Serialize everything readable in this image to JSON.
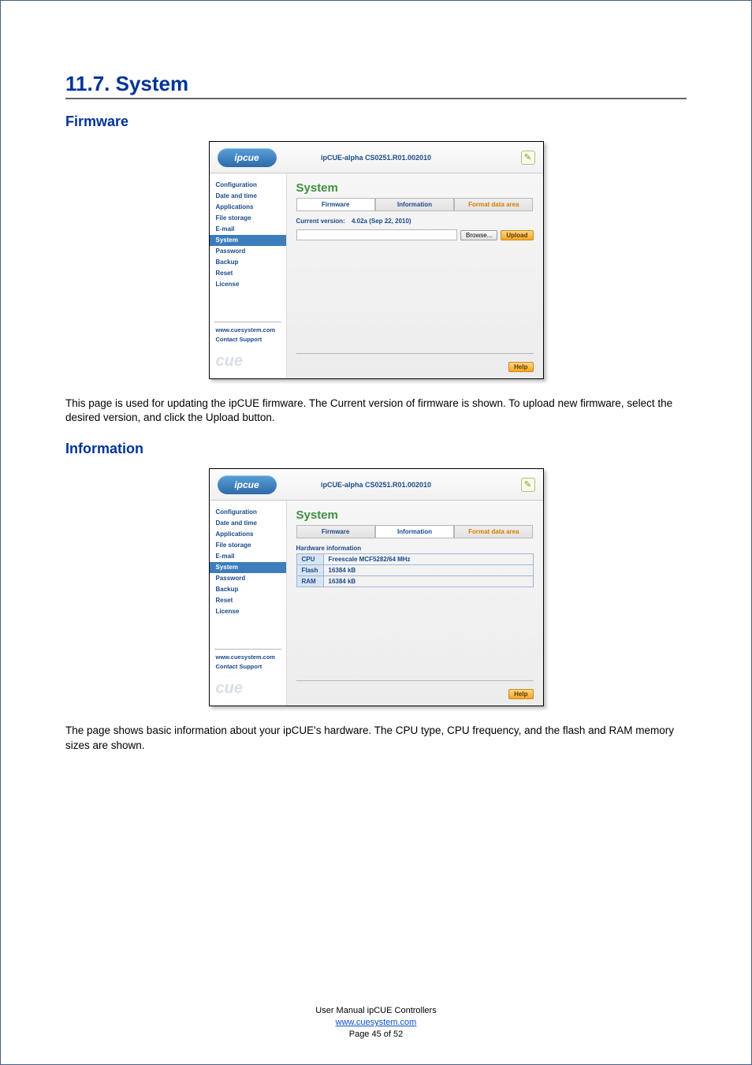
{
  "doc": {
    "section_number_title": "11.7.   System",
    "sub_firmware": "Firmware",
    "sub_information": "Information",
    "para_firmware": "This page is used for updating the ipCUE firmware. The Current version of firmware is shown. To upload new firmware, select the desired version, and click the Upload button.",
    "para_information": "The page shows basic information about your ipCUE's hardware. The CPU type, CPU frequency, and the flash and RAM memory sizes are shown.",
    "footer_line1": "User Manual ipCUE Controllers",
    "footer_link": "www.cuesystem.com",
    "footer_page": "Page 45 of 52"
  },
  "colors": {
    "heading_blue": "#003399",
    "link_blue": "#0b4fcf",
    "screenshot_green": "#3f8f3f",
    "screenshot_navy": "#1a4a8a",
    "screenshot_orange_text": "#d97a00"
  },
  "shared": {
    "logo_text": "ipcue",
    "header_title": "ipCUE-alpha   CS0251.R01.002010",
    "tool_glyph": "✎",
    "sidebar": {
      "items": [
        "Configuration",
        "Date and time",
        "Applications",
        "File storage",
        "E-mail",
        "System",
        "Password",
        "Backup",
        "Reset",
        "License"
      ],
      "active_index": 5,
      "link_www": "www.cuesystem.com",
      "link_contact": "Contact Support",
      "brand": "cue"
    },
    "panel_title": "System",
    "tabs": {
      "firmware": "Firmware",
      "information": "Information",
      "format": "Format data area"
    },
    "help_label": "Help"
  },
  "ss1": {
    "cv_label": "Current version:",
    "cv_value": "4.02a (Sep 22, 2010)",
    "browse_label": "Browse...",
    "upload_label": "Upload",
    "file_value": ""
  },
  "ss2": {
    "table_caption": "Hardware information",
    "rows": [
      {
        "k": "CPU",
        "v": "Freescale MCF5282/64 MHz"
      },
      {
        "k": "Flash",
        "v": "16384 kB"
      },
      {
        "k": "RAM",
        "v": "16384 kB"
      }
    ]
  }
}
